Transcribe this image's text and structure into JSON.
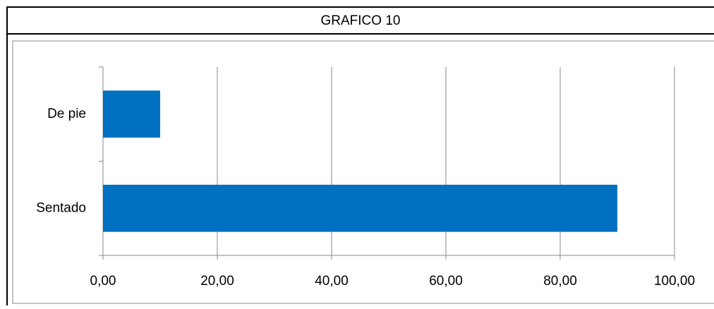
{
  "chart_data": {
    "type": "hbar",
    "title": "GRAFICO 10",
    "categories": [
      "De pie",
      "Sentado"
    ],
    "values": [
      10,
      90
    ],
    "color": "#0070c0",
    "xlim": [
      0,
      100
    ],
    "xticks": [
      {
        "value": 0,
        "label": "0,00"
      },
      {
        "value": 20,
        "label": "20,00"
      },
      {
        "value": 40,
        "label": "40,00"
      },
      {
        "value": 60,
        "label": "60,00"
      },
      {
        "value": 80,
        "label": "80,00"
      },
      {
        "value": 100,
        "label": "100,00"
      }
    ],
    "grid": true
  }
}
